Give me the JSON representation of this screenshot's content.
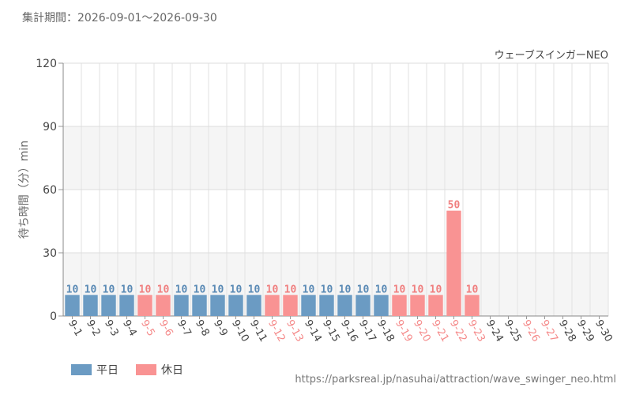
{
  "period_label": "集計期間：2026-09-01～2026-09-30",
  "attraction": "ウェーブスインガーNEO",
  "footer_url": "https://parksreal.jp/nasuhai/attraction/wave_swinger_neo.html",
  "legend": {
    "weekday": "平日",
    "holiday": "休日"
  },
  "colors": {
    "weekday": "#6b9bc3",
    "holiday": "#f99393"
  },
  "chart_data": {
    "type": "bar",
    "ylabel": "待ち時間（分）min",
    "ylim": [
      0,
      120
    ],
    "yticks": [
      0,
      30,
      60,
      90,
      120
    ],
    "categories": [
      "9-1",
      "9-2",
      "9-3",
      "9-4",
      "9-5",
      "9-6",
      "9-7",
      "9-8",
      "9-9",
      "9-10",
      "9-11",
      "9-12",
      "9-13",
      "9-14",
      "9-15",
      "9-16",
      "9-17",
      "9-18",
      "9-19",
      "9-20",
      "9-21",
      "9-22",
      "9-23",
      "9-24",
      "9-25",
      "9-26",
      "9-27",
      "9-28",
      "9-29",
      "9-30"
    ],
    "values": [
      10,
      10,
      10,
      10,
      10,
      10,
      10,
      10,
      10,
      10,
      10,
      10,
      10,
      10,
      10,
      10,
      10,
      10,
      10,
      10,
      10,
      50,
      10,
      null,
      null,
      null,
      null,
      null,
      null,
      null
    ],
    "day_type": [
      "weekday",
      "weekday",
      "weekday",
      "weekday",
      "holiday",
      "holiday",
      "weekday",
      "weekday",
      "weekday",
      "weekday",
      "weekday",
      "holiday",
      "holiday",
      "weekday",
      "weekday",
      "weekday",
      "weekday",
      "weekday",
      "holiday",
      "holiday",
      "holiday",
      "holiday",
      "holiday",
      "weekday",
      "weekday",
      "holiday",
      "holiday",
      "weekday",
      "weekday",
      "weekday"
    ]
  }
}
